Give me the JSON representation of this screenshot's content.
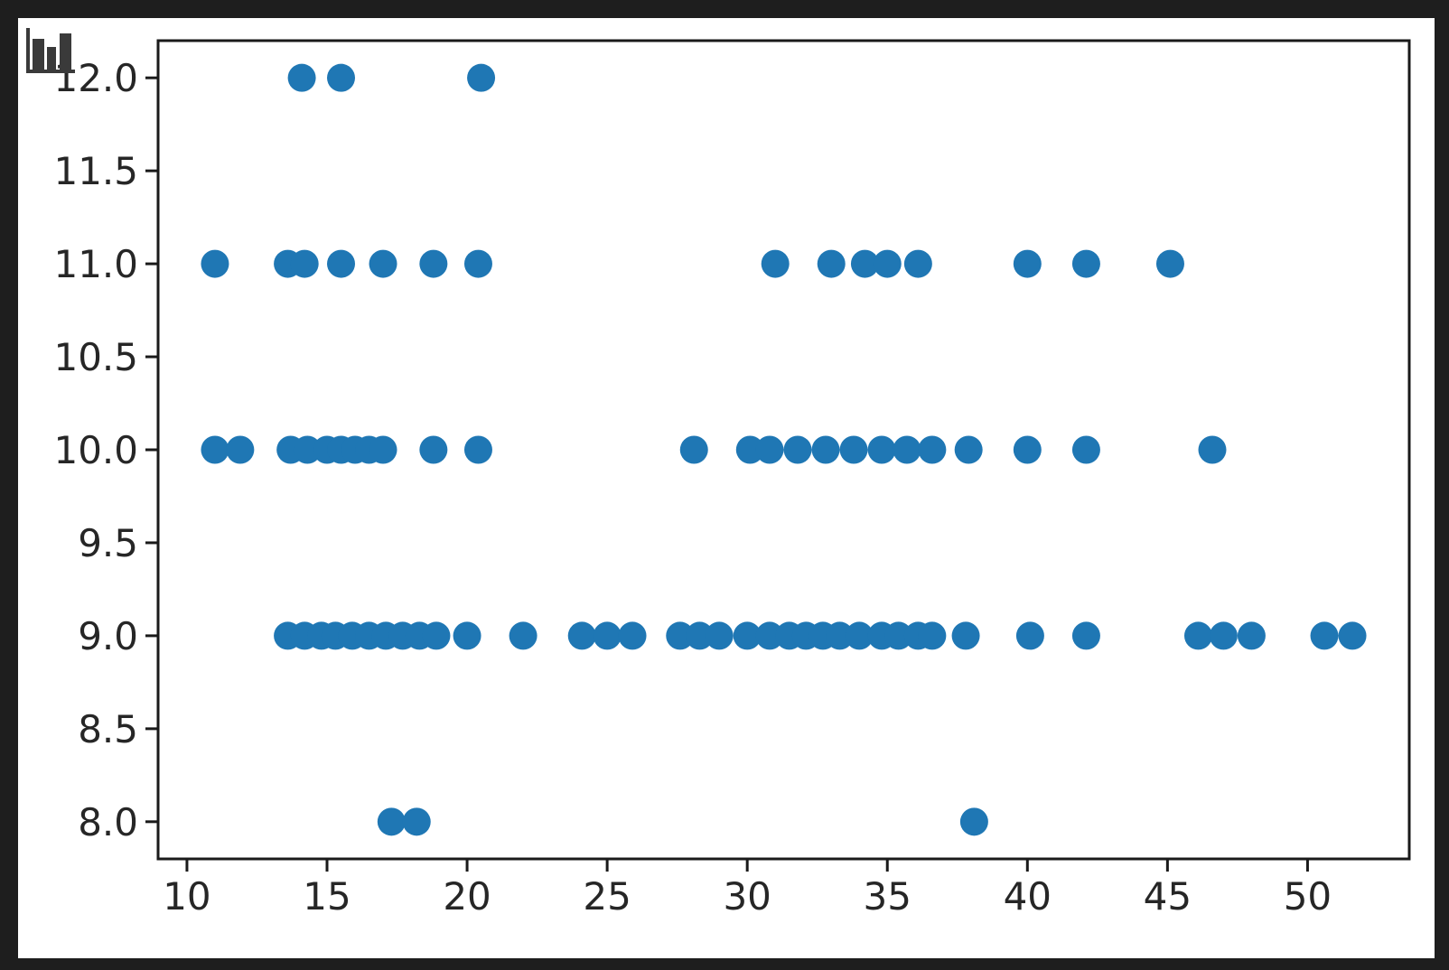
{
  "window": {
    "background_color": "#1e1e1e",
    "figure_background_color": "#ffffff"
  },
  "icon": {
    "name": "bar-chart-icon",
    "color": "#3a3a3a"
  },
  "chart_data": {
    "type": "scatter",
    "title": "",
    "xlabel": "",
    "ylabel": "",
    "grid": false,
    "legend": null,
    "marker_color": "#1f77b4",
    "marker_radius_px": 15.5,
    "axis_color": "#1a1a1a",
    "tick_label_color": "#262626",
    "xlim": [
      8.97,
      53.63
    ],
    "ylim": [
      7.8,
      12.2
    ],
    "x_ticks": [
      {
        "value": 10,
        "label": "10"
      },
      {
        "value": 15,
        "label": "15"
      },
      {
        "value": 20,
        "label": "20"
      },
      {
        "value": 25,
        "label": "25"
      },
      {
        "value": 30,
        "label": "30"
      },
      {
        "value": 35,
        "label": "35"
      },
      {
        "value": 40,
        "label": "40"
      },
      {
        "value": 45,
        "label": "45"
      },
      {
        "value": 50,
        "label": "50"
      }
    ],
    "y_ticks": [
      {
        "value": 8.0,
        "label": "8.0"
      },
      {
        "value": 8.5,
        "label": "8.5"
      },
      {
        "value": 9.0,
        "label": "9.0"
      },
      {
        "value": 9.5,
        "label": "9.5"
      },
      {
        "value": 10.0,
        "label": "10.0"
      },
      {
        "value": 10.5,
        "label": "10.5"
      },
      {
        "value": 11.0,
        "label": "11.0"
      },
      {
        "value": 11.5,
        "label": "11.5"
      },
      {
        "value": 12.0,
        "label": "12.0"
      }
    ],
    "points_by_y": [
      {
        "y": 12.0,
        "x": [
          14.1,
          15.5,
          20.5
        ]
      },
      {
        "y": 11.0,
        "x": [
          11.0,
          13.6,
          14.2,
          15.5,
          17.0,
          18.8,
          20.4,
          31.0,
          33.0,
          34.2,
          35.0,
          36.1,
          40.0,
          42.1,
          45.1
        ]
      },
      {
        "y": 10.0,
        "x": [
          11.0,
          11.9,
          13.7,
          14.3,
          15.0,
          15.5,
          16.0,
          16.5,
          17.0,
          18.8,
          20.4,
          28.1,
          30.1,
          30.8,
          31.8,
          32.8,
          33.8,
          34.8,
          35.7,
          36.6,
          37.9,
          40.0,
          42.1,
          46.6
        ]
      },
      {
        "y": 9.0,
        "x": [
          13.6,
          14.2,
          14.8,
          15.3,
          15.9,
          16.5,
          17.1,
          17.7,
          18.3,
          18.9,
          20.0,
          22.0,
          24.1,
          25.0,
          25.9,
          27.6,
          28.3,
          29.0,
          30.0,
          30.8,
          31.5,
          32.1,
          32.7,
          33.3,
          34.0,
          34.8,
          35.4,
          36.1,
          36.6,
          37.8,
          40.1,
          42.1,
          46.1,
          47.0,
          48.0,
          50.6,
          51.6
        ]
      },
      {
        "y": 8.0,
        "x": [
          17.3,
          18.2,
          38.1
        ]
      }
    ]
  }
}
